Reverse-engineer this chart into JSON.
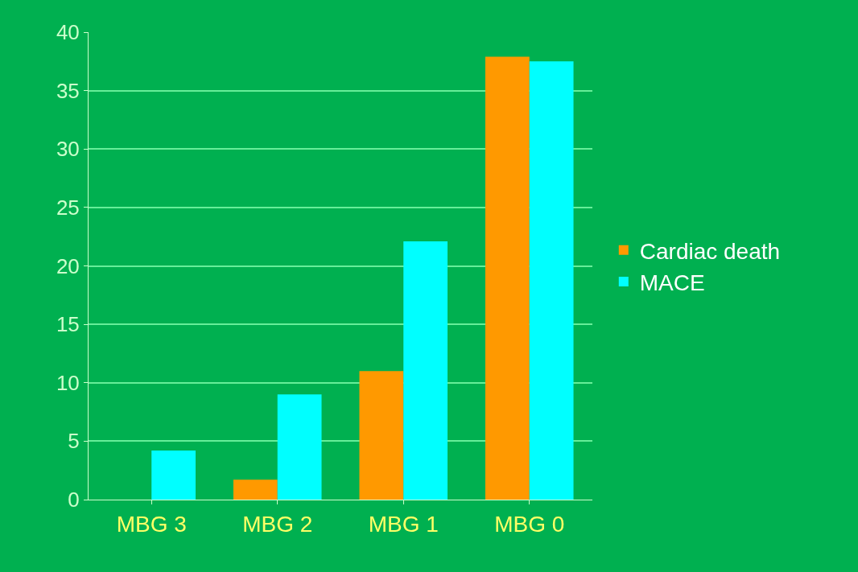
{
  "chart_data": {
    "type": "bar",
    "categories": [
      "MBG 3",
      "MBG 2",
      "MBG 1",
      "MBG 0"
    ],
    "series": [
      {
        "name": "Cardiac death",
        "color": "#ff9900",
        "values": [
          0,
          1.7,
          11.0,
          37.9
        ]
      },
      {
        "name": "MACE",
        "color": "#00ffff",
        "values": [
          4.2,
          9.0,
          22.1,
          37.5
        ]
      }
    ],
    "ylim": [
      0,
      40
    ],
    "yticks": [
      0,
      5,
      10,
      15,
      20,
      25,
      30,
      35,
      40
    ],
    "grid": "y",
    "legend": "right"
  }
}
